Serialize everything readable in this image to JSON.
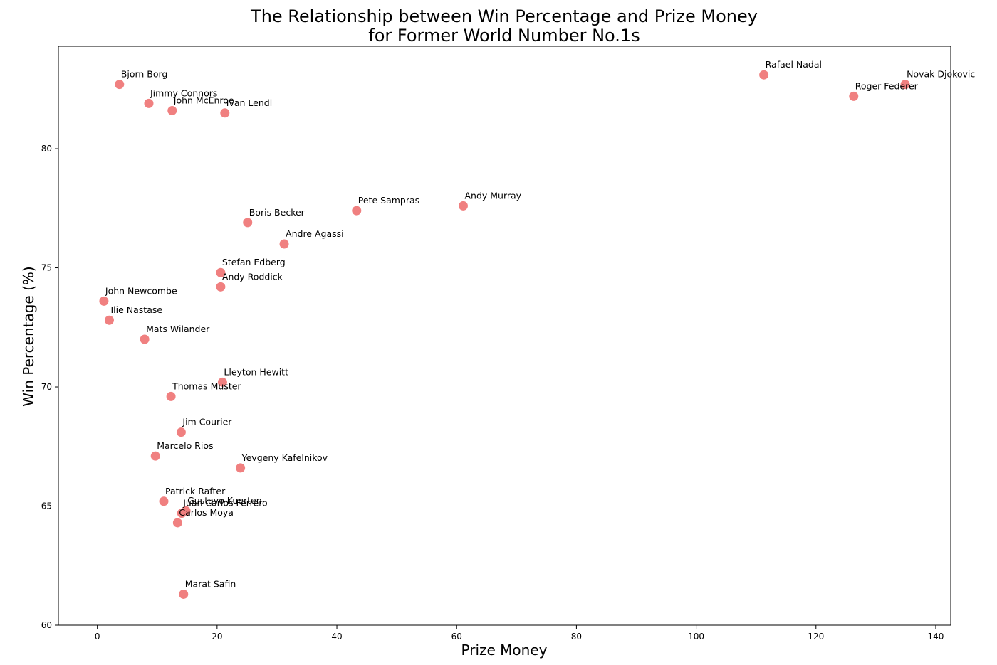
{
  "chart_data": {
    "type": "scatter",
    "title": [
      "The Relationship between Win Percentage and Prize Money",
      "for Former World Number No.1s"
    ],
    "xlabel": "Prize Money",
    "ylabel": "Win Percentage (%)",
    "xlim": [
      -6.5,
      142.5
    ],
    "ylim": [
      60,
      84.3
    ],
    "xticks": [
      0,
      20,
      40,
      60,
      80,
      100,
      120,
      140
    ],
    "yticks": [
      60,
      65,
      70,
      75,
      80
    ],
    "grid": false,
    "marker_color": "#f08080",
    "points": [
      {
        "label": "Bjorn Borg",
        "x": 3.7,
        "y": 82.7
      },
      {
        "label": "Jimmy Connors",
        "x": 8.6,
        "y": 81.9
      },
      {
        "label": "John McEnroe",
        "x": 12.5,
        "y": 81.6
      },
      {
        "label": "Ivan Lendl",
        "x": 21.3,
        "y": 81.5
      },
      {
        "label": "Rafael Nadal",
        "x": 111.3,
        "y": 83.1
      },
      {
        "label": "Novak Djokovic",
        "x": 134.9,
        "y": 82.7
      },
      {
        "label": "Roger Federer",
        "x": 126.3,
        "y": 82.2
      },
      {
        "label": "Pete Sampras",
        "x": 43.3,
        "y": 77.4
      },
      {
        "label": "Andy Murray",
        "x": 61.1,
        "y": 77.6
      },
      {
        "label": "Boris Becker",
        "x": 25.1,
        "y": 76.9
      },
      {
        "label": "Andre Agassi",
        "x": 31.2,
        "y": 76.0
      },
      {
        "label": "Stefan Edberg",
        "x": 20.6,
        "y": 74.8
      },
      {
        "label": "Andy Roddick",
        "x": 20.6,
        "y": 74.2
      },
      {
        "label": "John Newcombe",
        "x": 1.1,
        "y": 73.6
      },
      {
        "label": "Ilie Nastase",
        "x": 2.0,
        "y": 72.8
      },
      {
        "label": "Mats Wilander",
        "x": 7.9,
        "y": 72.0
      },
      {
        "label": "Lleyton Hewitt",
        "x": 20.9,
        "y": 70.2
      },
      {
        "label": "Thomas Muster",
        "x": 12.3,
        "y": 69.6
      },
      {
        "label": "Jim Courier",
        "x": 14.0,
        "y": 68.1
      },
      {
        "label": "Marcelo Rios",
        "x": 9.7,
        "y": 67.1
      },
      {
        "label": "Yevgeny Kafelnikov",
        "x": 23.9,
        "y": 66.6
      },
      {
        "label": "Patrick Rafter",
        "x": 11.1,
        "y": 65.2
      },
      {
        "label": "Gustavo Kuerten",
        "x": 14.8,
        "y": 64.8
      },
      {
        "label": "Juan Carlos Ferrero",
        "x": 14.1,
        "y": 64.7
      },
      {
        "label": "Carlos Moya",
        "x": 13.4,
        "y": 64.3
      },
      {
        "label": "Marat Safin",
        "x": 14.4,
        "y": 61.3
      }
    ]
  }
}
